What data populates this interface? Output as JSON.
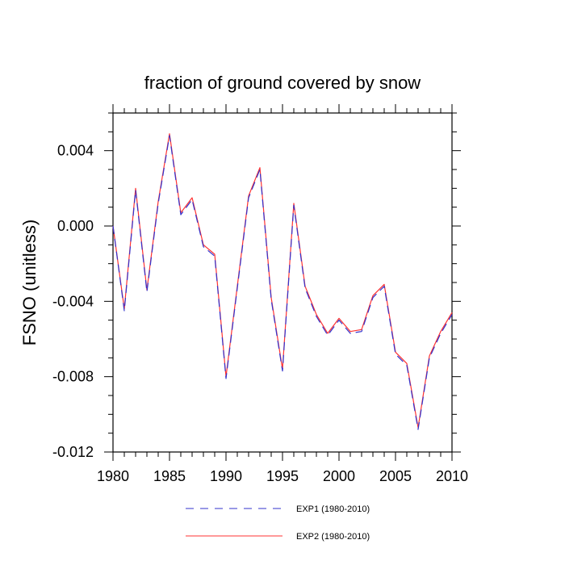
{
  "chart_data": {
    "type": "line",
    "title": "fraction of ground covered by snow",
    "xlabel": "",
    "ylabel": "FSNO  (unitless)",
    "xlim": [
      1980,
      2010
    ],
    "ylim": [
      -0.012,
      0.006
    ],
    "xticks": [
      1980,
      1985,
      1990,
      1995,
      2000,
      2005,
      2010
    ],
    "xtick_labels": [
      "1980",
      "1985",
      "1990",
      "1995",
      "2000",
      "2005",
      "2010"
    ],
    "yticks": [
      -0.012,
      -0.008,
      -0.004,
      0.0,
      0.004
    ],
    "ytick_labels": [
      "-0.012",
      "-0.008",
      "-0.004",
      "0.000",
      "0.004"
    ],
    "grid": false,
    "legend_position": "bottom",
    "x": [
      1980,
      1981,
      1982,
      1983,
      1984,
      1985,
      1986,
      1987,
      1988,
      1989,
      1990,
      1991,
      1992,
      1993,
      1994,
      1995,
      1996,
      1997,
      1998,
      1999,
      2000,
      2001,
      2002,
      2003,
      2004,
      2005,
      2006,
      2007,
      2008,
      2009,
      2010
    ],
    "series": [
      {
        "name": "EXP1 (1980-2010)",
        "color": "#3333cc",
        "dash": "dashed",
        "values": [
          0.0,
          -0.0045,
          0.0019,
          -0.0035,
          0.0012,
          0.0048,
          0.0006,
          0.0014,
          -0.0011,
          -0.0016,
          -0.0081,
          -0.0033,
          0.0015,
          0.003,
          -0.0039,
          -0.0077,
          0.0011,
          -0.0033,
          -0.0048,
          -0.0058,
          -0.005,
          -0.0057,
          -0.0056,
          -0.0038,
          -0.0032,
          -0.0068,
          -0.0074,
          -0.0108,
          -0.007,
          -0.0057,
          -0.0047
        ]
      },
      {
        "name": "EXP2 (1980-2010)",
        "color": "#ff3333",
        "dash": "solid",
        "values": [
          0.0,
          -0.0044,
          0.002,
          -0.0034,
          0.0013,
          0.0049,
          0.0007,
          0.0015,
          -0.001,
          -0.0015,
          -0.008,
          -0.0032,
          0.0016,
          0.0031,
          -0.0038,
          -0.0076,
          0.0012,
          -0.0032,
          -0.0047,
          -0.0057,
          -0.0049,
          -0.0056,
          -0.0055,
          -0.0037,
          -0.0031,
          -0.0067,
          -0.0073,
          -0.0107,
          -0.0069,
          -0.0056,
          -0.0046
        ]
      }
    ]
  }
}
